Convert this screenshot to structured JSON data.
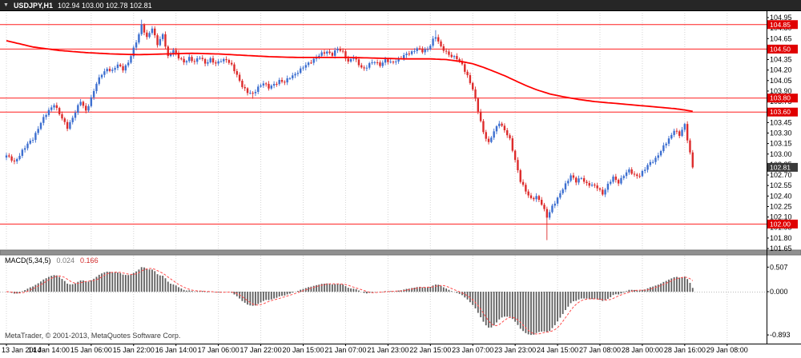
{
  "titlebar": {
    "menu_icon": "▼",
    "symbol": "USDJPY,H1",
    "ohlc": "102.94 103.00 102.78 102.81"
  },
  "chart_data": {
    "type": "candlestick",
    "title": "USDJPY,H1",
    "symbol": "USDJPY",
    "timeframe": "H1",
    "last_ohlc": {
      "open": 102.94,
      "high": 103.0,
      "low": 102.78,
      "close": 102.81
    },
    "y_axis": {
      "min": 101.65,
      "max": 104.95,
      "step": 0.15,
      "labels": [
        "104.95",
        "104.80",
        "104.65",
        "104.50",
        "104.35",
        "104.20",
        "104.05",
        "103.90",
        "103.75",
        "103.60",
        "103.45",
        "103.30",
        "103.15",
        "103.00",
        "102.85",
        "102.70",
        "102.55",
        "102.40",
        "102.25",
        "102.10",
        "101.95",
        "101.80",
        "101.65"
      ]
    },
    "x_axis": {
      "bars_per_label": 16,
      "labels": [
        "13 Jan 2014",
        "14 Jan 14:00",
        "15 Jan 06:00",
        "15 Jan 22:00",
        "16 Jan 14:00",
        "17 Jan 06:00",
        "17 Jan 22:00",
        "20 Jan 15:00",
        "21 Jan 07:00",
        "21 Jan 23:00",
        "22 Jan 15:00",
        "23 Jan 07:00",
        "23 Jan 23:00",
        "24 Jan 15:00",
        "27 Jan 08:00",
        "28 Jan 00:00",
        "28 Jan 16:00",
        "29 Jan 08:00"
      ]
    },
    "bars_total": 260,
    "close_path": [
      [
        0,
        102.98
      ],
      [
        3,
        102.88
      ],
      [
        6,
        103.05
      ],
      [
        10,
        103.22
      ],
      [
        13,
        103.45
      ],
      [
        16,
        103.62
      ],
      [
        18,
        103.72
      ],
      [
        21,
        103.5
      ],
      [
        23,
        103.38
      ],
      [
        26,
        103.6
      ],
      [
        28,
        103.75
      ],
      [
        30,
        103.62
      ],
      [
        32,
        103.8
      ],
      [
        34,
        104.0
      ],
      [
        36,
        104.15
      ],
      [
        38,
        104.22
      ],
      [
        40,
        104.18
      ],
      [
        42,
        104.28
      ],
      [
        44,
        104.22
      ],
      [
        46,
        104.3
      ],
      [
        48,
        104.5
      ],
      [
        50,
        104.72
      ],
      [
        51,
        104.85
      ],
      [
        53,
        104.65
      ],
      [
        55,
        104.8
      ],
      [
        57,
        104.58
      ],
      [
        59,
        104.7
      ],
      [
        61,
        104.38
      ],
      [
        63,
        104.5
      ],
      [
        65,
        104.38
      ],
      [
        67,
        104.3
      ],
      [
        69,
        104.38
      ],
      [
        71,
        104.32
      ],
      [
        73,
        104.38
      ],
      [
        75,
        104.3
      ],
      [
        77,
        104.36
      ],
      [
        79,
        104.28
      ],
      [
        81,
        104.34
      ],
      [
        83,
        104.36
      ],
      [
        85,
        104.26
      ],
      [
        87,
        104.12
      ],
      [
        89,
        103.98
      ],
      [
        91,
        103.88
      ],
      [
        93,
        103.85
      ],
      [
        95,
        103.96
      ],
      [
        97,
        104.02
      ],
      [
        99,
        103.94
      ],
      [
        101,
        104.0
      ],
      [
        103,
        104.05
      ],
      [
        105,
        104.02
      ],
      [
        107,
        104.1
      ],
      [
        109,
        104.15
      ],
      [
        111,
        104.2
      ],
      [
        113,
        104.27
      ],
      [
        115,
        104.33
      ],
      [
        117,
        104.38
      ],
      [
        119,
        104.43
      ],
      [
        121,
        104.47
      ],
      [
        123,
        104.42
      ],
      [
        125,
        104.5
      ],
      [
        127,
        104.46
      ],
      [
        129,
        104.32
      ],
      [
        131,
        104.38
      ],
      [
        133,
        104.28
      ],
      [
        135,
        104.22
      ],
      [
        137,
        104.28
      ],
      [
        139,
        104.32
      ],
      [
        141,
        104.28
      ],
      [
        143,
        104.34
      ],
      [
        145,
        104.3
      ],
      [
        147,
        104.34
      ],
      [
        149,
        104.38
      ],
      [
        151,
        104.42
      ],
      [
        153,
        104.46
      ],
      [
        155,
        104.52
      ],
      [
        157,
        104.46
      ],
      [
        159,
        104.5
      ],
      [
        161,
        104.64
      ],
      [
        162,
        104.68
      ],
      [
        164,
        104.52
      ],
      [
        166,
        104.46
      ],
      [
        168,
        104.4
      ],
      [
        170,
        104.36
      ],
      [
        172,
        104.28
      ],
      [
        174,
        104.12
      ],
      [
        176,
        103.92
      ],
      [
        178,
        103.62
      ],
      [
        180,
        103.32
      ],
      [
        182,
        103.15
      ],
      [
        184,
        103.32
      ],
      [
        186,
        103.46
      ],
      [
        188,
        103.34
      ],
      [
        190,
        103.2
      ],
      [
        192,
        102.92
      ],
      [
        194,
        102.62
      ],
      [
        196,
        102.46
      ],
      [
        198,
        102.36
      ],
      [
        200,
        102.4
      ],
      [
        202,
        102.28
      ],
      [
        204,
        102.1
      ],
      [
        206,
        102.26
      ],
      [
        208,
        102.36
      ],
      [
        210,
        102.5
      ],
      [
        212,
        102.64
      ],
      [
        213,
        102.7
      ],
      [
        215,
        102.6
      ],
      [
        217,
        102.66
      ],
      [
        219,
        102.58
      ],
      [
        221,
        102.55
      ],
      [
        223,
        102.52
      ],
      [
        225,
        102.44
      ],
      [
        227,
        102.56
      ],
      [
        229,
        102.66
      ],
      [
        231,
        102.6
      ],
      [
        233,
        102.7
      ],
      [
        235,
        102.76
      ],
      [
        237,
        102.7
      ],
      [
        239,
        102.7
      ],
      [
        241,
        102.78
      ],
      [
        243,
        102.88
      ],
      [
        245,
        102.94
      ],
      [
        247,
        103.04
      ],
      [
        249,
        103.16
      ],
      [
        251,
        103.28
      ],
      [
        252,
        103.35
      ],
      [
        254,
        103.26
      ],
      [
        256,
        103.42
      ],
      [
        257,
        103.22
      ],
      [
        258,
        103.02
      ],
      [
        259,
        102.81
      ]
    ],
    "spikes": [
      {
        "bar": 51,
        "high": 104.92
      },
      {
        "bar": 162,
        "high": 104.77
      },
      {
        "bar": 93,
        "low": 103.79
      },
      {
        "bar": 204,
        "low": 101.77
      }
    ],
    "ma_line": {
      "name": "moving-average",
      "color": "#ff0000",
      "path": [
        [
          0,
          104.62
        ],
        [
          10,
          104.53
        ],
        [
          20,
          104.48
        ],
        [
          30,
          104.45
        ],
        [
          40,
          104.43
        ],
        [
          50,
          104.42
        ],
        [
          60,
          104.43
        ],
        [
          70,
          104.44
        ],
        [
          80,
          104.43
        ],
        [
          90,
          104.41
        ],
        [
          100,
          104.39
        ],
        [
          110,
          104.38
        ],
        [
          120,
          104.38
        ],
        [
          130,
          104.38
        ],
        [
          140,
          104.37
        ],
        [
          150,
          104.36
        ],
        [
          160,
          104.36
        ],
        [
          166,
          104.35
        ],
        [
          172,
          104.32
        ],
        [
          176,
          104.29
        ],
        [
          180,
          104.24
        ],
        [
          184,
          104.18
        ],
        [
          188,
          104.12
        ],
        [
          192,
          104.05
        ],
        [
          196,
          103.98
        ],
        [
          200,
          103.92
        ],
        [
          205,
          103.86
        ],
        [
          210,
          103.82
        ],
        [
          216,
          103.78
        ],
        [
          222,
          103.75
        ],
        [
          228,
          103.73
        ],
        [
          234,
          103.71
        ],
        [
          240,
          103.69
        ],
        [
          246,
          103.67
        ],
        [
          252,
          103.65
        ],
        [
          256,
          103.63
        ],
        [
          259,
          103.61
        ]
      ]
    },
    "h_lines": [
      {
        "price": 104.85,
        "label": "104.85"
      },
      {
        "price": 104.5,
        "label": "104.50"
      },
      {
        "price": 103.8,
        "label": "103.80"
      },
      {
        "price": 103.6,
        "label": "103.60"
      },
      {
        "price": 102.0,
        "label": "102.00"
      }
    ],
    "current_price": {
      "value": 102.81,
      "label": "102.81"
    },
    "indicator": {
      "name": "MACD(5,34,5)",
      "value_macd": "0.024",
      "value_signal": "0.166",
      "axis": [
        {
          "value": 0.507,
          "label": "0.507"
        },
        {
          "value": 0.0,
          "label": "0.000"
        },
        {
          "value": -0.893,
          "label": "-0.893"
        }
      ]
    },
    "colors": {
      "up": "#3d6fd0",
      "down": "#dd2b2b",
      "line": "#ff1f1f",
      "ma": "#ff0000",
      "hist": "#5f5f5f",
      "signal": "#ff4d4d",
      "grid": "#d4d4d4",
      "axis_text": "#000000",
      "price_box_line": "#e00000",
      "price_box_current": "#3a3a3a"
    },
    "footer": {
      "copyright": "MetaTrader, © 2001-2013, MetaQuotes Software Corp."
    }
  }
}
